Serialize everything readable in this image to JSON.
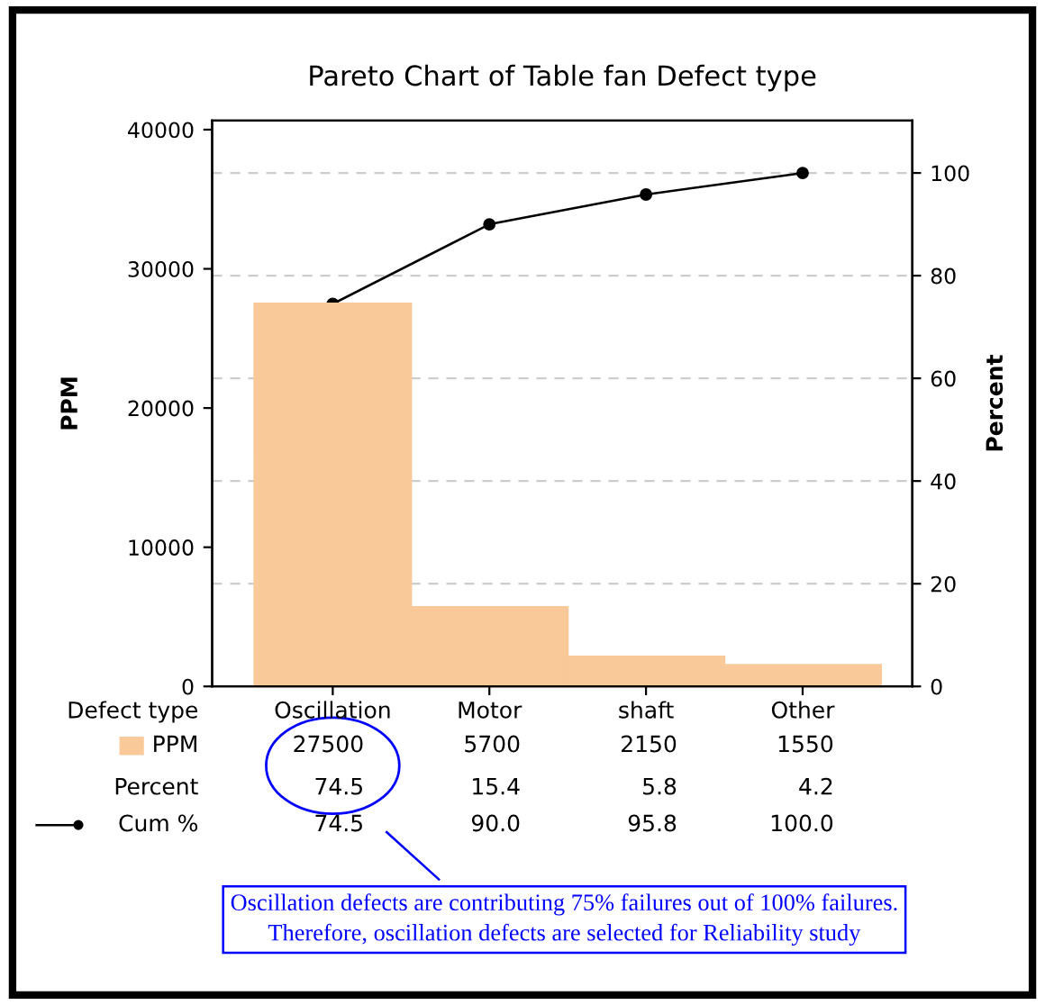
{
  "chart_data": {
    "type": "bar",
    "title": "Pareto Chart of Table fan Defect type",
    "xlabel": "Defect type",
    "ylabel": "PPM",
    "y2label": "Percent",
    "categories": [
      "Oscillation",
      "Motor",
      "shaft",
      "Other"
    ],
    "series": [
      {
        "name": "PPM",
        "type": "bar",
        "color": "#f9c99a",
        "values": [
          27500,
          5700,
          2150,
          1550
        ],
        "value_labels": [
          "27500",
          "5700",
          "2150",
          "1550"
        ]
      },
      {
        "name": "Cum %",
        "type": "line",
        "axis": "y2",
        "color": "#000000",
        "marker": "circle",
        "values": [
          74.5,
          90.0,
          95.8,
          100.0
        ],
        "value_labels": [
          "74.5",
          "90.0",
          "95.8",
          "100.0"
        ]
      }
    ],
    "ylim": [
      0,
      40650
    ],
    "yticks": [
      0,
      10000,
      20000,
      30000,
      40000
    ],
    "y2lim": [
      0,
      110.2
    ],
    "y2ticks": [
      0,
      20,
      40,
      60,
      80,
      100
    ],
    "grid": "y",
    "legend": "bottom left",
    "annotations": [
      "Percent",
      "74.5",
      "15.4",
      "5.8",
      "4.2",
      "Oscillation defects are contributing 75% failures out of 100% failures.\nTherefore, oscillation defects are selected for Reliability study"
    ]
  }
}
